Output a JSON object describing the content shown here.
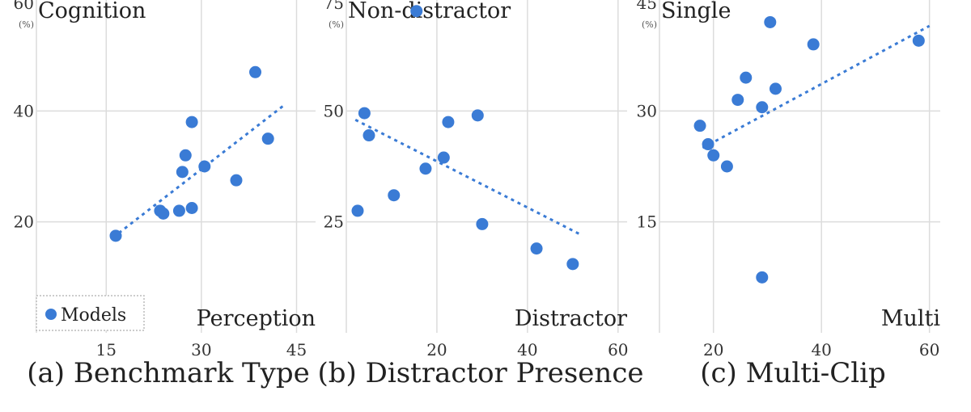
{
  "chart_data": [
    {
      "type": "scatter",
      "caption": "(a) Benchmark Type",
      "x_axis_name": "Perception",
      "y_axis_name": "Cognition",
      "y_unit": "(%)",
      "xlim": [
        4,
        48
      ],
      "ylim": [
        0,
        60
      ],
      "xticks": [
        15,
        30,
        45
      ],
      "yticks": [
        20,
        40
      ],
      "y_top_label": "60",
      "legend": {
        "label": "Models",
        "placement": "bottom-left"
      },
      "points": [
        [
          16.5,
          17.5
        ],
        [
          23.5,
          22
        ],
        [
          24,
          21.5
        ],
        [
          26.5,
          22
        ],
        [
          28.5,
          22.5
        ],
        [
          27,
          29
        ],
        [
          27.5,
          32
        ],
        [
          28.5,
          38
        ],
        [
          30.5,
          30
        ],
        [
          35.5,
          27.5
        ],
        [
          38.5,
          47
        ],
        [
          40.5,
          35
        ]
      ],
      "trend": [
        [
          17,
          18
        ],
        [
          43,
          41
        ]
      ]
    },
    {
      "type": "scatter",
      "caption": "(b) Distractor Presence",
      "x_axis_name": "Distractor",
      "y_axis_name": "Non-distractor",
      "y_unit": "(%)",
      "xlim": [
        0,
        62
      ],
      "ylim": [
        0,
        75
      ],
      "xticks": [
        20,
        40,
        60
      ],
      "yticks": [
        25,
        50
      ],
      "y_top_label": "75",
      "points": [
        [
          2.5,
          27.5
        ],
        [
          4,
          49.5
        ],
        [
          5,
          44.5
        ],
        [
          10.5,
          31
        ],
        [
          15.5,
          72.5
        ],
        [
          17.5,
          37
        ],
        [
          21.5,
          39.5
        ],
        [
          22.5,
          47.5
        ],
        [
          29,
          49
        ],
        [
          30,
          24.5
        ],
        [
          42,
          19
        ],
        [
          50,
          15.5
        ]
      ],
      "trend": [
        [
          2,
          48
        ],
        [
          52,
          22
        ]
      ]
    },
    {
      "type": "scatter",
      "caption": "(c) Multi-Clip",
      "x_axis_name": "Multi",
      "y_axis_name": "Single",
      "y_unit": "(%)",
      "xlim": [
        10,
        62
      ],
      "ylim": [
        0,
        45
      ],
      "xticks": [
        20,
        40,
        60
      ],
      "yticks": [
        15,
        30
      ],
      "y_top_label": "45",
      "points": [
        [
          17.5,
          28
        ],
        [
          19,
          25.5
        ],
        [
          20,
          24
        ],
        [
          22.5,
          22.5
        ],
        [
          24.5,
          31.5
        ],
        [
          26,
          34.5
        ],
        [
          29,
          30.5
        ],
        [
          30.5,
          42
        ],
        [
          31.5,
          33
        ],
        [
          29,
          7.5
        ],
        [
          38.5,
          39
        ],
        [
          58,
          39.5
        ]
      ],
      "trend": [
        [
          18,
          25
        ],
        [
          60,
          41.5
        ]
      ]
    }
  ]
}
